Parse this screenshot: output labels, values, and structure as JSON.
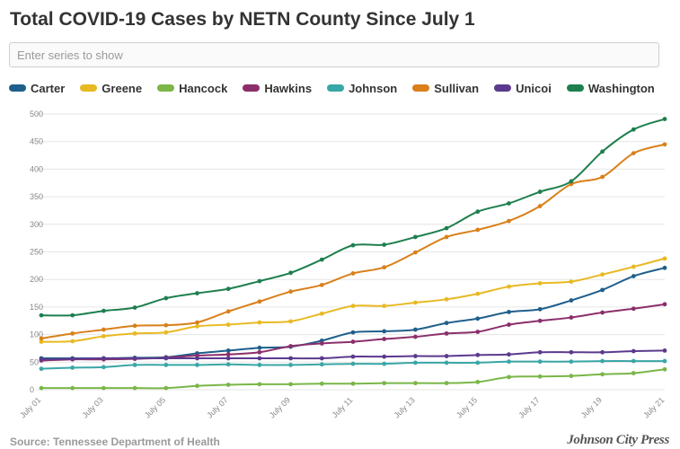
{
  "title": "Total COVID-19 Cases by NETN County Since July 1",
  "search": {
    "placeholder": "Enter series to show",
    "value": ""
  },
  "source_text": "Source: Tennessee Department of Health",
  "brand": "Johnson City Press",
  "chart_data": {
    "type": "line",
    "title": "Total COVID-19 Cases by NETN County Since July 1",
    "xlabel": "",
    "ylabel": "",
    "ylim": [
      0,
      500
    ],
    "yticks": [
      0,
      50,
      100,
      150,
      200,
      250,
      300,
      350,
      400,
      450,
      500
    ],
    "grid": true,
    "legend_position": "top",
    "x": [
      "July 01",
      "July 02",
      "July 03",
      "July 04",
      "July 05",
      "July 06",
      "July 07",
      "July 08",
      "July 09",
      "July 10",
      "July 11",
      "July 12",
      "July 13",
      "July 14",
      "July 15",
      "July 16",
      "July 17",
      "July 18",
      "July 19",
      "July 20",
      "July 21"
    ],
    "tick_labels": [
      "July 01",
      "July 03",
      "July 05",
      "July 07",
      "July 09",
      "July 11",
      "July 13",
      "July 15",
      "July 17",
      "July 19",
      "July 21"
    ],
    "series": [
      {
        "name": "Carter",
        "color": "#1f5f8b",
        "values": [
          57,
          57,
          57,
          58,
          59,
          66,
          71,
          76,
          78,
          89,
          104,
          106,
          109,
          121,
          129,
          141,
          146,
          162,
          181,
          206,
          221
        ]
      },
      {
        "name": "Greene",
        "color": "#e8b923",
        "values": [
          87,
          88,
          97,
          102,
          104,
          115,
          118,
          122,
          124,
          138,
          152,
          152,
          158,
          164,
          174,
          187,
          193,
          196,
          209,
          223,
          238
        ]
      },
      {
        "name": "Hancock",
        "color": "#7ab648",
        "values": [
          3,
          3,
          3,
          3,
          3,
          7,
          9,
          10,
          10,
          11,
          11,
          12,
          12,
          12,
          14,
          23,
          24,
          25,
          28,
          30,
          37
        ]
      },
      {
        "name": "Hawkins",
        "color": "#8b2f6b",
        "values": [
          53,
          55,
          55,
          56,
          58,
          62,
          64,
          68,
          79,
          84,
          87,
          92,
          96,
          102,
          105,
          118,
          125,
          131,
          140,
          147,
          155
        ]
      },
      {
        "name": "Johnson",
        "color": "#3aa6a6",
        "values": [
          38,
          40,
          41,
          45,
          45,
          45,
          46,
          45,
          45,
          46,
          47,
          47,
          49,
          49,
          49,
          51,
          51,
          51,
          52,
          52,
          52
        ]
      },
      {
        "name": "Sullivan",
        "color": "#d9801a",
        "values": [
          93,
          102,
          109,
          116,
          117,
          122,
          142,
          160,
          178,
          190,
          211,
          222,
          249,
          277,
          290,
          306,
          333,
          373,
          386,
          429,
          445
        ]
      },
      {
        "name": "Unicoi",
        "color": "#5b3a8e",
        "values": [
          55,
          56,
          57,
          57,
          57,
          57,
          57,
          57,
          57,
          57,
          60,
          60,
          61,
          61,
          63,
          64,
          68,
          68,
          68,
          70,
          71
        ]
      },
      {
        "name": "Washington",
        "color": "#1e7f4e",
        "values": [
          135,
          135,
          143,
          149,
          166,
          175,
          183,
          197,
          212,
          236,
          262,
          263,
          277,
          293,
          323,
          338,
          359,
          378,
          432,
          472,
          491
        ]
      }
    ]
  }
}
